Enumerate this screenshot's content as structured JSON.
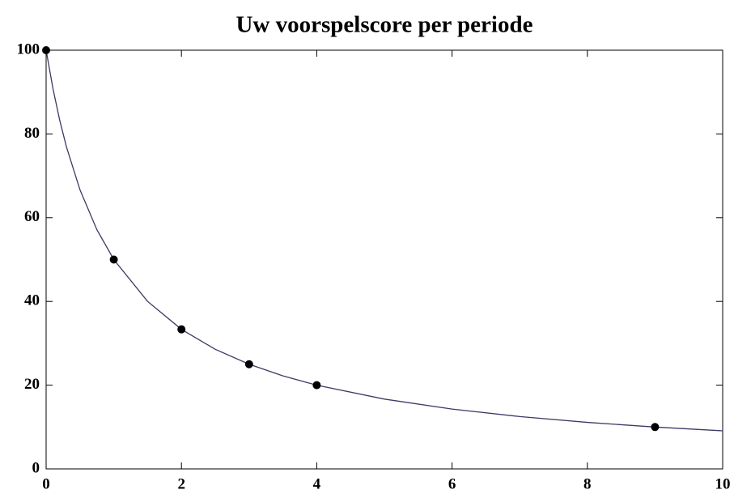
{
  "chart_data": {
    "type": "scatter",
    "title": "Uw voorspelscore per periode",
    "xlim": [
      0,
      10
    ],
    "ylim": [
      0,
      100
    ],
    "xticks": [
      0,
      2,
      4,
      6,
      8,
      10
    ],
    "yticks": [
      0,
      20,
      40,
      60,
      80,
      100
    ],
    "curve": {
      "color": "#3a3a66",
      "x": [
        0,
        0.1,
        0.2,
        0.3,
        0.5,
        0.75,
        1,
        1.5,
        2,
        2.5,
        3,
        3.5,
        4,
        5,
        6,
        7,
        8,
        9,
        10
      ],
      "values": [
        100,
        90.91,
        83.33,
        76.92,
        66.67,
        57.14,
        50,
        40,
        33.33,
        28.57,
        25,
        22.22,
        20,
        16.67,
        14.29,
        12.5,
        11.11,
        10,
        9.09
      ]
    },
    "points": {
      "color": "#000000",
      "x": [
        0,
        1,
        2,
        3,
        4,
        9
      ],
      "values": [
        100,
        50,
        33.33,
        25,
        20,
        10
      ]
    }
  }
}
